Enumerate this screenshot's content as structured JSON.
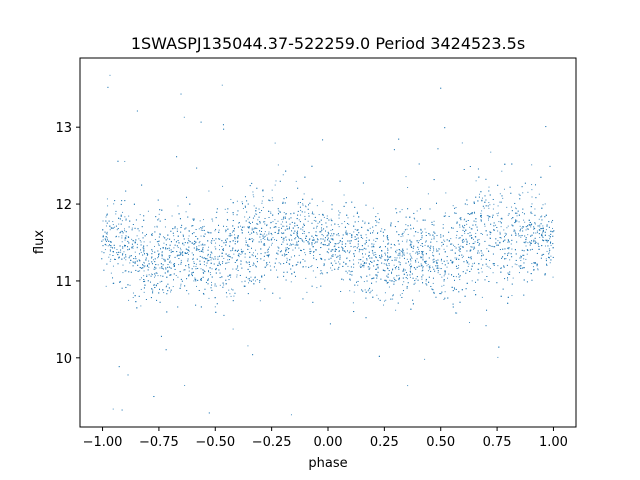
{
  "chart_data": {
    "type": "scatter",
    "title": "1SWASPJ135044.37-522259.0 Period 3424523.5s",
    "xlabel": "phase",
    "ylabel": "flux",
    "xlim": [
      -1.1,
      1.1
    ],
    "ylim": [
      9.1,
      13.9
    ],
    "xticks": [
      -1.0,
      -0.75,
      -0.5,
      -0.25,
      0.0,
      0.25,
      0.5,
      0.75,
      1.0
    ],
    "xtick_labels": [
      "−1.00",
      "−0.75",
      "−0.50",
      "−0.25",
      "0.00",
      "0.25",
      "0.50",
      "0.75",
      "1.00"
    ],
    "yticks": [
      10,
      11,
      12,
      13
    ],
    "ytick_labels": [
      "10",
      "11",
      "12",
      "13"
    ],
    "grid": false,
    "marker_color": "#1f77b4",
    "phase_range": [
      -1.0,
      1.0
    ],
    "flux_profile": {
      "phase": [
        -1.0,
        -0.9,
        -0.8,
        -0.7,
        -0.6,
        -0.5,
        -0.4,
        -0.3,
        -0.2,
        -0.1,
        0.0,
        0.1,
        0.2,
        0.3,
        0.4,
        0.5,
        0.6,
        0.7,
        0.8,
        0.9,
        1.0
      ],
      "median_flux": [
        11.5,
        11.45,
        11.25,
        11.3,
        11.35,
        11.3,
        11.45,
        11.6,
        11.55,
        11.6,
        11.5,
        11.45,
        11.25,
        11.3,
        11.35,
        11.3,
        11.45,
        11.6,
        11.55,
        11.6,
        11.5
      ],
      "spread": [
        0.3,
        0.35,
        0.35,
        0.35,
        0.35,
        0.35,
        0.4,
        0.45,
        0.4,
        0.4,
        0.3,
        0.35,
        0.35,
        0.35,
        0.35,
        0.35,
        0.4,
        0.45,
        0.4,
        0.4,
        0.3
      ]
    },
    "flux_extremes": [
      9.2,
      13.7
    ]
  }
}
